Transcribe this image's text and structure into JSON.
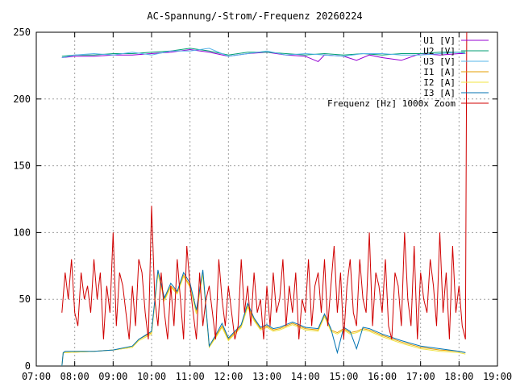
{
  "chart_data": {
    "type": "line",
    "title": "AC-Spannung/-Strom/-Frequenz 20260224",
    "xlabel": "",
    "ylabel": "",
    "grid": true,
    "legend_position": "top-right",
    "x_ticks": [
      "07:00",
      "08:00",
      "09:00",
      "10:00",
      "11:00",
      "12:00",
      "13:00",
      "14:00",
      "15:00",
      "16:00",
      "17:00",
      "18:00",
      "19:00"
    ],
    "y_ticks": [
      "0",
      "50",
      "100",
      "150",
      "200",
      "250"
    ],
    "xlim": [
      "07:00",
      "19:00"
    ],
    "ylim": [
      0,
      250
    ],
    "series": [
      {
        "name": "U1 [V]",
        "color": "#9400d3",
        "x": [
          "07:40",
          "08:00",
          "08:30",
          "09:00",
          "09:30",
          "10:00",
          "10:30",
          "11:00",
          "11:30",
          "12:00",
          "12:30",
          "13:00",
          "13:30",
          "14:00",
          "14:20",
          "14:30",
          "15:00",
          "15:20",
          "15:40",
          "16:00",
          "16:30",
          "17:00",
          "17:30",
          "18:00",
          "18:10"
        ],
        "y": [
          231,
          232,
          232,
          233,
          233,
          234,
          235,
          237,
          235,
          232,
          234,
          235,
          233,
          232,
          228,
          233,
          232,
          229,
          233,
          231,
          229,
          234,
          233,
          234,
          234
        ]
      },
      {
        "name": "U2 [V]",
        "color": "#009e73",
        "x": [
          "07:40",
          "08:00",
          "08:30",
          "09:00",
          "09:30",
          "10:00",
          "10:30",
          "11:00",
          "11:30",
          "12:00",
          "12:30",
          "13:00",
          "13:30",
          "14:00",
          "14:30",
          "15:00",
          "15:30",
          "16:00",
          "16:30",
          "17:00",
          "17:30",
          "18:00",
          "18:10"
        ],
        "y": [
          232,
          233,
          233,
          234,
          234,
          235,
          236,
          238,
          236,
          233,
          235,
          235,
          234,
          233,
          234,
          233,
          234,
          233,
          234,
          234,
          235,
          235,
          235
        ]
      },
      {
        "name": "U3 [V]",
        "color": "#56b4e9",
        "x": [
          "07:40",
          "08:00",
          "08:30",
          "09:00",
          "09:30",
          "10:00",
          "10:30",
          "11:00",
          "11:30",
          "12:00",
          "12:30",
          "13:00",
          "13:30",
          "14:00",
          "14:30",
          "15:00",
          "15:30",
          "16:00",
          "16:30",
          "17:00",
          "17:30",
          "18:00",
          "18:10"
        ],
        "y": [
          231,
          233,
          234,
          233,
          235,
          233,
          236,
          236,
          238,
          232,
          234,
          236,
          233,
          234,
          233,
          232,
          234,
          234,
          233,
          233,
          234,
          235,
          234
        ]
      },
      {
        "name": "I1 [A]",
        "color": "#e69f00",
        "x": [
          "07:40",
          "07:42",
          "07:45",
          "08:30",
          "09:00",
          "09:30",
          "09:40",
          "10:00",
          "10:10",
          "10:20",
          "10:30",
          "10:40",
          "10:50",
          "11:00",
          "11:10",
          "11:20",
          "11:30",
          "11:40",
          "11:50",
          "12:00",
          "12:10",
          "12:20",
          "12:30",
          "12:40",
          "12:50",
          "13:00",
          "13:10",
          "13:20",
          "13:30",
          "13:40",
          "14:00",
          "14:20",
          "14:30",
          "14:40",
          "14:50",
          "15:00",
          "15:10",
          "15:20",
          "15:30",
          "15:40",
          "16:00",
          "16:30",
          "17:00",
          "17:30",
          "18:00",
          "18:10"
        ],
        "y": [
          0,
          10,
          10,
          11,
          12,
          14,
          20,
          25,
          70,
          50,
          60,
          55,
          68,
          60,
          40,
          70,
          15,
          22,
          30,
          20,
          25,
          30,
          45,
          35,
          28,
          30,
          27,
          28,
          30,
          32,
          28,
          27,
          38,
          27,
          25,
          28,
          25,
          26,
          28,
          27,
          23,
          18,
          14,
          12,
          11,
          10
        ]
      },
      {
        "name": "I2 [A]",
        "color": "#f0e442",
        "x": [
          "07:40",
          "07:42",
          "07:45",
          "08:30",
          "09:00",
          "09:30",
          "09:40",
          "10:00",
          "10:10",
          "10:20",
          "10:30",
          "10:40",
          "10:50",
          "11:00",
          "11:10",
          "11:20",
          "11:30",
          "11:40",
          "11:50",
          "12:00",
          "12:10",
          "12:20",
          "12:30",
          "12:40",
          "12:50",
          "13:00",
          "13:10",
          "13:20",
          "13:30",
          "13:40",
          "14:00",
          "14:20",
          "14:30",
          "14:40",
          "14:50",
          "15:00",
          "15:10",
          "15:20",
          "15:30",
          "15:40",
          "16:00",
          "16:30",
          "17:00",
          "17:30",
          "18:00",
          "18:10"
        ],
        "y": [
          0,
          10,
          10,
          11,
          12,
          14,
          19,
          24,
          69,
          49,
          59,
          54,
          67,
          59,
          39,
          69,
          14,
          21,
          29,
          19,
          24,
          29,
          44,
          34,
          27,
          29,
          26,
          27,
          29,
          31,
          27,
          26,
          37,
          26,
          24,
          27,
          24,
          25,
          27,
          26,
          22,
          17,
          13,
          11,
          10,
          9
        ]
      },
      {
        "name": "I3 [A]",
        "color": "#0072b2",
        "x": [
          "07:40",
          "07:42",
          "07:45",
          "08:30",
          "09:00",
          "09:30",
          "09:40",
          "10:00",
          "10:10",
          "10:20",
          "10:30",
          "10:40",
          "10:50",
          "11:00",
          "11:10",
          "11:20",
          "11:30",
          "11:40",
          "11:50",
          "12:00",
          "12:10",
          "12:20",
          "12:30",
          "12:40",
          "12:50",
          "13:00",
          "13:10",
          "13:20",
          "13:30",
          "13:40",
          "14:00",
          "14:20",
          "14:30",
          "14:40",
          "14:50",
          "15:00",
          "15:10",
          "15:20",
          "15:30",
          "15:40",
          "16:00",
          "16:30",
          "17:00",
          "17:30",
          "18:00",
          "18:10"
        ],
        "y": [
          0,
          10,
          11,
          11,
          12,
          15,
          20,
          26,
          72,
          51,
          62,
          56,
          70,
          62,
          42,
          72,
          15,
          23,
          32,
          21,
          26,
          31,
          47,
          36,
          29,
          31,
          28,
          29,
          31,
          33,
          29,
          28,
          39,
          28,
          10,
          29,
          26,
          13,
          29,
          28,
          24,
          19,
          15,
          13,
          11,
          10
        ]
      },
      {
        "name": "Frequenz [Hz] 1000x Zoom",
        "color": "#d00000",
        "x": [
          "07:40",
          "07:45",
          "07:50",
          "07:55",
          "08:00",
          "08:05",
          "08:10",
          "08:15",
          "08:20",
          "08:25",
          "08:30",
          "08:35",
          "08:40",
          "08:45",
          "08:50",
          "08:55",
          "09:00",
          "09:05",
          "09:10",
          "09:15",
          "09:20",
          "09:25",
          "09:30",
          "09:35",
          "09:40",
          "09:45",
          "09:50",
          "09:55",
          "10:00",
          "10:05",
          "10:10",
          "10:15",
          "10:20",
          "10:25",
          "10:30",
          "10:35",
          "10:40",
          "10:45",
          "10:50",
          "10:55",
          "11:00",
          "11:05",
          "11:10",
          "11:15",
          "11:20",
          "11:25",
          "11:30",
          "11:35",
          "11:40",
          "11:45",
          "11:50",
          "11:55",
          "12:00",
          "12:05",
          "12:10",
          "12:15",
          "12:20",
          "12:25",
          "12:30",
          "12:35",
          "12:40",
          "12:45",
          "12:50",
          "12:55",
          "13:00",
          "13:05",
          "13:10",
          "13:15",
          "13:20",
          "13:25",
          "13:30",
          "13:35",
          "13:40",
          "13:45",
          "13:50",
          "13:55",
          "14:00",
          "14:05",
          "14:10",
          "14:15",
          "14:20",
          "14:25",
          "14:30",
          "14:35",
          "14:40",
          "14:45",
          "14:50",
          "14:55",
          "15:00",
          "15:05",
          "15:10",
          "15:15",
          "15:20",
          "15:25",
          "15:30",
          "15:35",
          "15:40",
          "15:45",
          "15:50",
          "15:55",
          "16:00",
          "16:05",
          "16:10",
          "16:15",
          "16:20",
          "16:25",
          "16:30",
          "16:35",
          "16:40",
          "16:45",
          "16:50",
          "16:55",
          "17:00",
          "17:05",
          "17:10",
          "17:15",
          "17:20",
          "17:25",
          "17:30",
          "17:35",
          "17:40",
          "17:45",
          "17:50",
          "17:55",
          "18:00",
          "18:05",
          "18:10",
          "18:12"
        ],
        "y": [
          40,
          70,
          50,
          80,
          40,
          30,
          70,
          50,
          60,
          40,
          80,
          50,
          70,
          20,
          60,
          40,
          100,
          30,
          70,
          60,
          40,
          20,
          60,
          30,
          80,
          70,
          40,
          20,
          120,
          50,
          30,
          70,
          40,
          20,
          60,
          30,
          80,
          50,
          20,
          90,
          60,
          40,
          20,
          70,
          30,
          50,
          60,
          40,
          20,
          80,
          50,
          30,
          60,
          40,
          20,
          30,
          80,
          40,
          60,
          30,
          70,
          40,
          50,
          20,
          60,
          30,
          70,
          40,
          50,
          80,
          30,
          60,
          40,
          70,
          20,
          50,
          40,
          80,
          30,
          60,
          70,
          40,
          80,
          30,
          60,
          90,
          40,
          70,
          20,
          60,
          80,
          40,
          30,
          80,
          50,
          40,
          100,
          30,
          70,
          60,
          40,
          80,
          30,
          20,
          70,
          60,
          30,
          100,
          50,
          30,
          90,
          20,
          70,
          50,
          40,
          80,
          60,
          30,
          100,
          40,
          70,
          20,
          90,
          40,
          60,
          30,
          20,
          250
        ]
      }
    ]
  }
}
